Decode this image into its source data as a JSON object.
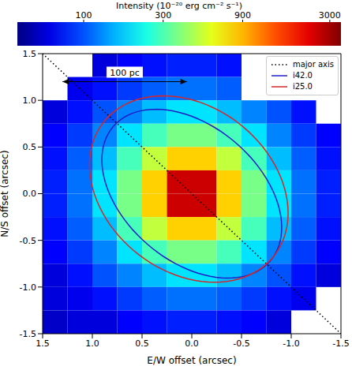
{
  "chart_data": {
    "type": "heatmap",
    "x_label": "E/W offset (arcsec)",
    "y_label": "N/S offset (arcsec)",
    "xlim": [
      1.5,
      -1.5
    ],
    "xticks": [
      1.5,
      {
        "value": 1,
        "label": "1.0"
      },
      0.5,
      {
        "value": 0,
        "label": "0.0"
      },
      -0.5,
      {
        "value": -1,
        "label": "-1.0"
      },
      -1.5
    ],
    "ylim": [
      -1.5,
      1.5
    ],
    "yticks": [
      -1.5,
      {
        "value": -1,
        "label": "-1.0"
      },
      -0.5,
      {
        "value": 0,
        "label": "0.0"
      },
      0.5,
      {
        "value": 1,
        "label": "1.0"
      },
      1.5
    ],
    "heatmap": {
      "x": [
        1.375,
        1.125,
        0.875,
        0.625,
        0.375,
        0.125,
        -0.125,
        -0.375,
        -0.625,
        -0.875,
        -1.125,
        -1.375
      ],
      "y": [
        1.375,
        1.125,
        0.875,
        0.625,
        0.375,
        0.125,
        -0.125,
        -0.375,
        -0.625,
        -0.875,
        -1.125,
        -1.375
      ],
      "values": [
        [
          null,
          null,
          60,
          70,
          75,
          80,
          80,
          75,
          null,
          null,
          null,
          null
        ],
        [
          null,
          65,
          75,
          90,
          105,
          115,
          115,
          105,
          null,
          null,
          null,
          null
        ],
        [
          60,
          75,
          100,
          125,
          160,
          190,
          190,
          160,
          125,
          100,
          75,
          null
        ],
        [
          70,
          90,
          125,
          190,
          290,
          360,
          360,
          290,
          190,
          125,
          90,
          70
        ],
        [
          75,
          105,
          160,
          290,
          500,
          800,
          800,
          500,
          290,
          160,
          105,
          75
        ],
        [
          80,
          115,
          190,
          360,
          800,
          2500,
          2500,
          800,
          360,
          190,
          115,
          80
        ],
        [
          80,
          115,
          190,
          360,
          800,
          2500,
          2500,
          800,
          360,
          190,
          115,
          80
        ],
        [
          75,
          105,
          160,
          290,
          500,
          800,
          800,
          500,
          290,
          160,
          105,
          75
        ],
        [
          70,
          90,
          125,
          190,
          290,
          360,
          360,
          290,
          190,
          125,
          90,
          70
        ],
        [
          60,
          75,
          100,
          125,
          160,
          190,
          190,
          160,
          125,
          100,
          75,
          60
        ],
        [
          60,
          65,
          75,
          90,
          105,
          115,
          115,
          105,
          90,
          75,
          65,
          null
        ],
        [
          55,
          60,
          60,
          70,
          75,
          80,
          80,
          75,
          70,
          60,
          null,
          null
        ]
      ]
    },
    "colorbar": {
      "label": "Intensity (10⁻²⁰ erg cm⁻² s⁻¹)",
      "range": [
        40,
        3500
      ],
      "ticks": [
        100,
        300,
        900,
        3000
      ],
      "log": true
    },
    "series": [
      {
        "name": "major axis",
        "color": "#000000",
        "line_style": "dotted",
        "x": [
          1.5,
          -1.5
        ],
        "y": [
          1.5,
          -1.5
        ]
      },
      {
        "name": "i42.0",
        "color": "#1f1fc8",
        "line_style": "solid",
        "type": "ellipse",
        "center": [
          0,
          0
        ],
        "semi_major": 1.07,
        "semi_minor": 0.7,
        "angle": 45
      },
      {
        "name": "i25.0",
        "color": "#d62728",
        "line_style": "solid",
        "type": "ellipse",
        "center": [
          0.03,
          0.05
        ],
        "semi_major": 1.12,
        "semi_minor": 0.86,
        "angle": 45
      }
    ],
    "legend": "upper right",
    "annotations": [
      {
        "text": "100 pc",
        "x": [
          1.3,
          0.05
        ],
        "y": 1.2
      }
    ]
  }
}
